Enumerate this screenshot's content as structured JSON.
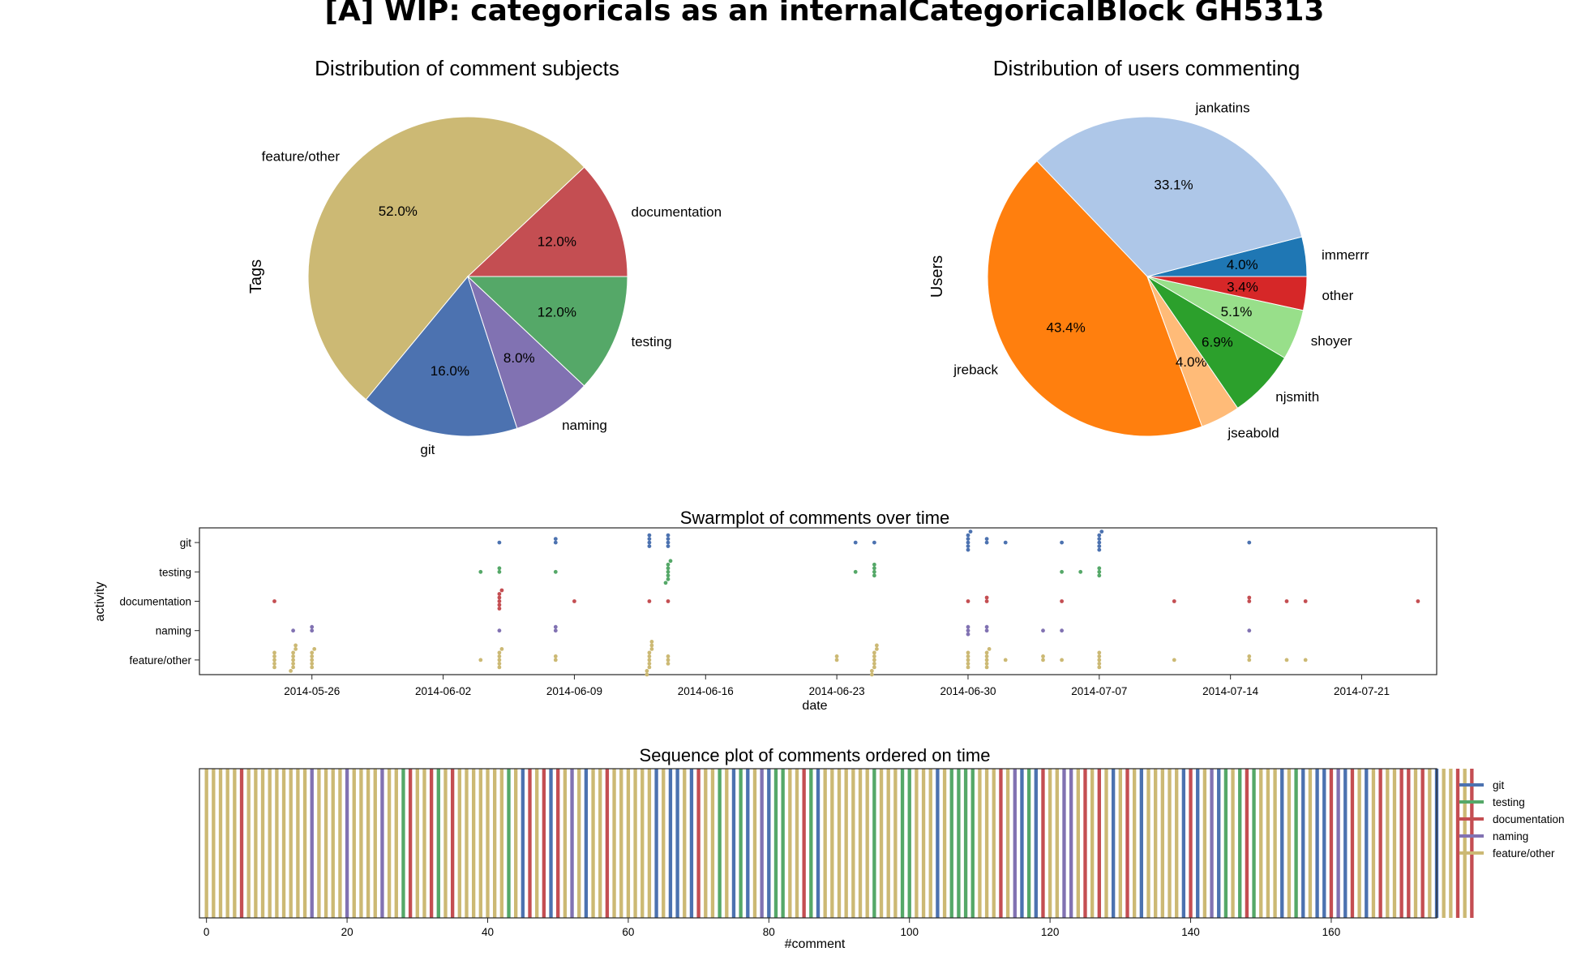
{
  "figure": {
    "title": "[A] WIP: categoricals as an internalCategoricalBlock GH5313"
  },
  "colors": {
    "git": "#4c72b0",
    "testing": "#55a868",
    "documentation": "#c44e52",
    "naming": "#8172b2",
    "feature/other": "#ccb974"
  },
  "chart_data": [
    {
      "type": "pie",
      "title": "Distribution of comment subjects",
      "ylabel": "Tags",
      "start_angle_deg": 0,
      "slices": [
        {
          "label": "documentation",
          "pct": 12.0,
          "pct_label": "12.0%",
          "color": "#c44e52"
        },
        {
          "label": "feature/other",
          "pct": 52.0,
          "pct_label": "52.0%",
          "color": "#ccb974"
        },
        {
          "label": "git",
          "pct": 16.0,
          "pct_label": "16.0%",
          "color": "#4c72b0"
        },
        {
          "label": "naming",
          "pct": 8.0,
          "pct_label": "8.0%",
          "color": "#8172b2"
        },
        {
          "label": "testing",
          "pct": 12.0,
          "pct_label": "12.0%",
          "color": "#55a868"
        }
      ]
    },
    {
      "type": "pie",
      "title": "Distribution of users commenting",
      "ylabel": "Users",
      "start_angle_deg": 0,
      "slices": [
        {
          "label": "immerrr",
          "pct": 4.0,
          "pct_label": "4.0%",
          "color": "#1f77b4"
        },
        {
          "label": "jankatins",
          "pct": 33.1,
          "pct_label": "33.1%",
          "color": "#aec7e8"
        },
        {
          "label": "jreback",
          "pct": 43.4,
          "pct_label": "43.4%",
          "color": "#ff7f0e"
        },
        {
          "label": "jseabold",
          "pct": 4.0,
          "pct_label": "4.0%",
          "color": "#ffbb78"
        },
        {
          "label": "njsmith",
          "pct": 6.9,
          "pct_label": "6.9%",
          "color": "#2ca02c"
        },
        {
          "label": "shoyer",
          "pct": 5.1,
          "pct_label": "5.1%",
          "color": "#98df8a"
        },
        {
          "label": "other",
          "pct": 3.4,
          "pct_label": "3.4%",
          "color": "#d62728"
        }
      ]
    },
    {
      "type": "scatter",
      "title": "Swarmplot of comments over time",
      "xlabel": "date",
      "ylabel": "activity",
      "categories": [
        "git",
        "testing",
        "documentation",
        "naming",
        "feature/other"
      ],
      "xlim": [
        "2014-05-20",
        "2014-07-25"
      ],
      "xticks": [
        "2014-05-26",
        "2014-06-02",
        "2014-06-09",
        "2014-06-16",
        "2014-06-23",
        "2014-06-30",
        "2014-07-07",
        "2014-07-14",
        "2014-07-21"
      ],
      "series": [
        {
          "name": "git",
          "dates": [
            "2014-06-05",
            "2014-06-08",
            "2014-06-08",
            "2014-06-13",
            "2014-06-13",
            "2014-06-13",
            "2014-06-13",
            "2014-06-14",
            "2014-06-14",
            "2014-06-14",
            "2014-06-14",
            "2014-06-24",
            "2014-06-25",
            "2014-06-30",
            "2014-06-30",
            "2014-06-30",
            "2014-06-30",
            "2014-06-30",
            "2014-06-30",
            "2014-07-01",
            "2014-07-01",
            "2014-07-02",
            "2014-07-05",
            "2014-07-07",
            "2014-07-07",
            "2014-07-07",
            "2014-07-07",
            "2014-07-07",
            "2014-07-07",
            "2014-07-15"
          ]
        },
        {
          "name": "testing",
          "dates": [
            "2014-06-04",
            "2014-06-05",
            "2014-06-05",
            "2014-06-08",
            "2014-06-14",
            "2014-06-14",
            "2014-06-14",
            "2014-06-14",
            "2014-06-14",
            "2014-06-14",
            "2014-06-14",
            "2014-06-24",
            "2014-06-25",
            "2014-06-25",
            "2014-06-25",
            "2014-06-25",
            "2014-07-05",
            "2014-07-06",
            "2014-07-07",
            "2014-07-07",
            "2014-07-07"
          ]
        },
        {
          "name": "documentation",
          "dates": [
            "2014-05-24",
            "2014-06-05",
            "2014-06-05",
            "2014-06-05",
            "2014-06-05",
            "2014-06-05",
            "2014-06-05",
            "2014-06-09",
            "2014-06-13",
            "2014-06-14",
            "2014-06-30",
            "2014-07-01",
            "2014-07-01",
            "2014-07-05",
            "2014-07-11",
            "2014-07-15",
            "2014-07-15",
            "2014-07-17",
            "2014-07-18",
            "2014-07-24"
          ]
        },
        {
          "name": "naming",
          "dates": [
            "2014-05-25",
            "2014-05-26",
            "2014-05-26",
            "2014-06-05",
            "2014-06-08",
            "2014-06-08",
            "2014-06-30",
            "2014-06-30",
            "2014-06-30",
            "2014-07-01",
            "2014-07-01",
            "2014-07-04",
            "2014-07-05",
            "2014-07-15"
          ]
        },
        {
          "name": "feature/other",
          "dates": [
            "2014-05-24",
            "2014-05-24",
            "2014-05-24",
            "2014-05-24",
            "2014-05-24",
            "2014-05-25",
            "2014-05-25",
            "2014-05-25",
            "2014-05-25",
            "2014-05-25",
            "2014-05-25",
            "2014-05-25",
            "2014-05-25",
            "2014-05-26",
            "2014-05-26",
            "2014-05-26",
            "2014-05-26",
            "2014-05-26",
            "2014-05-26",
            "2014-06-04",
            "2014-06-05",
            "2014-06-05",
            "2014-06-05",
            "2014-06-05",
            "2014-06-05",
            "2014-06-05",
            "2014-06-08",
            "2014-06-08",
            "2014-06-13",
            "2014-06-13",
            "2014-06-13",
            "2014-06-13",
            "2014-06-13",
            "2014-06-13",
            "2014-06-13",
            "2014-06-13",
            "2014-06-13",
            "2014-06-13",
            "2014-06-14",
            "2014-06-14",
            "2014-06-14",
            "2014-06-23",
            "2014-06-23",
            "2014-06-25",
            "2014-06-25",
            "2014-06-25",
            "2014-06-25",
            "2014-06-25",
            "2014-06-25",
            "2014-06-25",
            "2014-06-25",
            "2014-06-25",
            "2014-06-30",
            "2014-06-30",
            "2014-06-30",
            "2014-06-30",
            "2014-06-30",
            "2014-07-01",
            "2014-07-01",
            "2014-07-01",
            "2014-07-01",
            "2014-07-01",
            "2014-07-01",
            "2014-07-02",
            "2014-07-04",
            "2014-07-04",
            "2014-07-05",
            "2014-07-07",
            "2014-07-07",
            "2014-07-07",
            "2014-07-07",
            "2014-07-07",
            "2014-07-11",
            "2014-07-15",
            "2014-07-15",
            "2014-07-17",
            "2014-07-18"
          ]
        }
      ]
    },
    {
      "type": "bar",
      "title": "Sequence plot of comments ordered on time",
      "xlabel": "#comment",
      "xlim": [
        -1,
        175
      ],
      "xticks": [
        0,
        20,
        40,
        60,
        80,
        100,
        120,
        140,
        160
      ],
      "legend": {
        "placement": "outside-right-top",
        "entries": [
          "git",
          "testing",
          "documentation",
          "naming",
          "feature/other"
        ]
      },
      "codes": [
        "feature/other",
        "git",
        "testing",
        "documentation",
        "naming"
      ],
      "sequence": [
        0,
        0,
        0,
        0,
        0,
        3,
        0,
        0,
        0,
        0,
        0,
        0,
        0,
        0,
        0,
        4,
        0,
        0,
        0,
        0,
        4,
        0,
        0,
        0,
        0,
        4,
        0,
        0,
        2,
        3,
        0,
        0,
        3,
        2,
        0,
        3,
        0,
        0,
        0,
        0,
        0,
        0,
        0,
        2,
        0,
        1,
        3,
        0,
        3,
        1,
        3,
        0,
        4,
        0,
        1,
        0,
        0,
        3,
        0,
        0,
        0,
        0,
        0,
        0,
        1,
        0,
        1,
        1,
        0,
        1,
        3,
        0,
        0,
        2,
        0,
        1,
        2,
        1,
        0,
        4,
        1,
        2,
        2,
        0,
        0,
        3,
        2,
        1,
        0,
        0,
        0,
        0,
        0,
        0,
        0,
        2,
        0,
        0,
        0,
        2,
        2,
        0,
        0,
        0,
        1,
        0,
        2,
        2,
        2,
        2,
        0,
        0,
        0,
        3,
        0,
        4,
        1,
        2,
        1,
        3,
        0,
        0,
        4,
        4,
        0,
        3,
        0,
        3,
        0,
        1,
        0,
        3,
        0,
        1,
        0,
        0,
        0,
        0,
        0,
        1,
        3,
        1,
        0,
        4,
        1,
        2,
        0,
        2,
        3,
        2,
        0,
        0,
        0,
        1,
        0,
        2,
        1,
        0,
        1,
        1,
        3,
        4,
        1,
        3,
        0,
        1,
        0,
        3,
        0,
        0,
        3,
        3,
        0,
        3,
        0,
        1,
        0,
        0,
        3,
        0,
        3
      ]
    }
  ]
}
